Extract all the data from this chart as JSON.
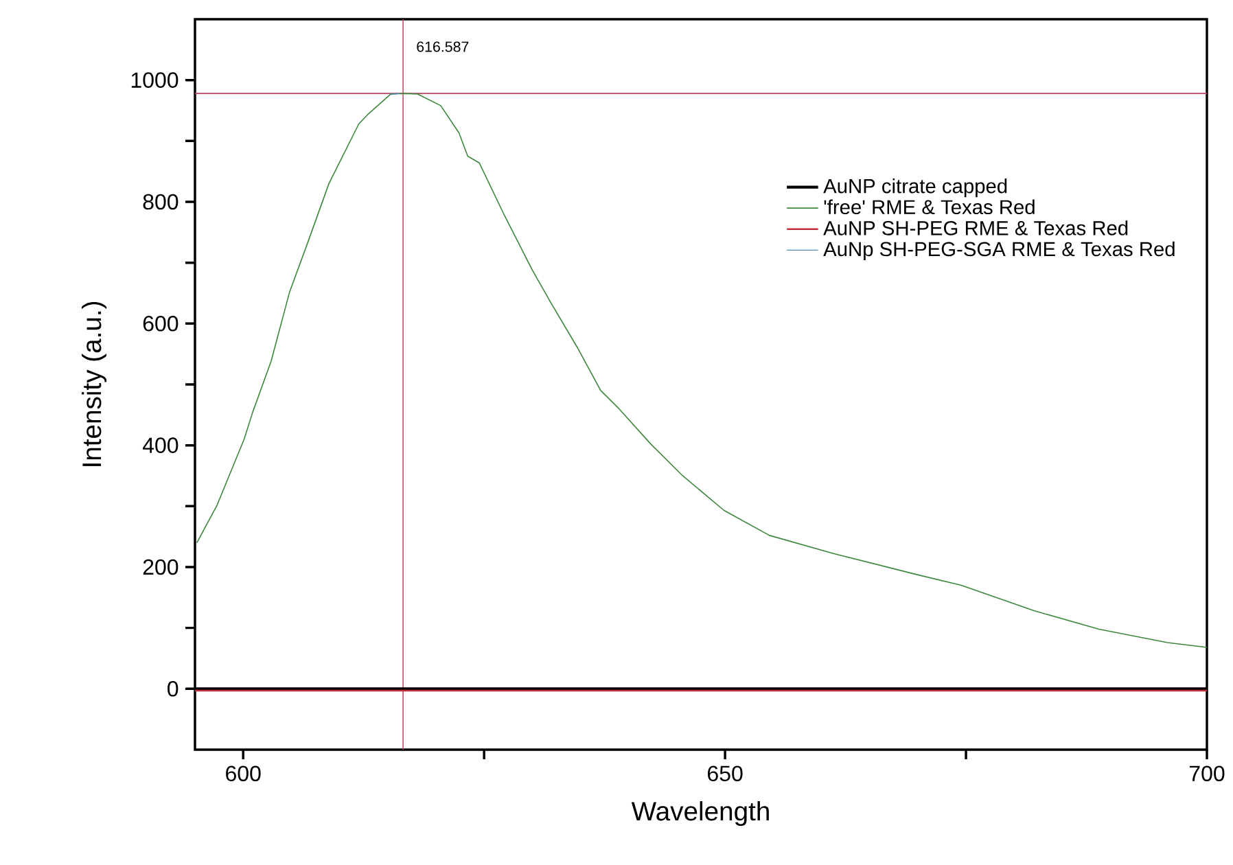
{
  "chart_data": {
    "type": "line",
    "xlabel": "Wavelength",
    "ylabel": "Intensity (a.u.)",
    "xlim": [
      595,
      700
    ],
    "ylim": [
      -100,
      1100
    ],
    "xticks": [
      600,
      {
        "value": 625,
        "label": null
      },
      650,
      {
        "value": 675,
        "label": null
      },
      700
    ],
    "yticks": [
      0,
      {
        "value": 100,
        "label": null
      },
      200,
      {
        "value": 300,
        "label": null
      },
      400,
      {
        "value": 500,
        "label": null
      },
      600,
      {
        "value": 700,
        "label": null
      },
      800,
      {
        "value": 900,
        "label": null
      },
      1000
    ],
    "series": [
      {
        "name": "AuNP citrate capped",
        "color": "#000000",
        "x": [
          595,
          700
        ],
        "values": [
          0,
          0
        ]
      },
      {
        "name": "'free' RME & Texas Red",
        "color": "#3c873c",
        "x": [
          595.2,
          597.3,
          600.1,
          601,
          602.9,
          604.8,
          606.7,
          608.9,
          612,
          612.9,
          615.3,
          616.6,
          618.1,
          620.5,
          622.4,
          623.3,
          624.5,
          627.1,
          630,
          631.9,
          634.7,
          637.1,
          639,
          642.3,
          645.6,
          649.9,
          654.6,
          661.3,
          669.8,
          674.5,
          682.1,
          688.8,
          695.9,
          700
        ],
        "values": [
          240,
          302,
          410,
          455,
          538,
          651,
          733,
          830,
          928,
          943,
          977,
          978,
          977,
          958,
          913,
          875,
          864,
          778,
          688,
          635,
          560,
          490,
          460,
          402,
          350,
          293,
          252,
          222,
          188,
          170,
          128,
          98,
          76,
          68
        ]
      },
      {
        "name": "AuNP SH-PEG RME & Texas Red",
        "color": "#c0303a",
        "x": [
          595,
          700
        ],
        "values": [
          -3,
          -3
        ]
      },
      {
        "name": "AuNp SH-PEG-SGA RME & Texas Red",
        "color": "#4a8fc0",
        "x": [
          615.2,
          616.2
        ],
        "values": [
          976,
          978
        ]
      }
    ],
    "ref_lines": [
      {
        "axis": "x",
        "value": 616.587,
        "label": "616.587",
        "color": "#c0405a"
      },
      {
        "axis": "y",
        "value": 978,
        "color": "#c0405a"
      }
    ],
    "legend": "top right",
    "grid": false,
    "marker": "none",
    "line_style": "solid"
  }
}
